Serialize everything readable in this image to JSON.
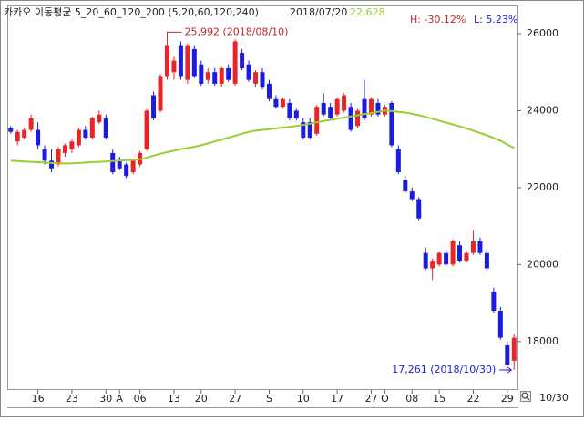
{
  "chart_data": {
    "type": "candlestick",
    "title": "카카오 이동평균 5_20_60_120_200 (5,20,60,120,240)",
    "readout_date": "2018/07/20",
    "readout_value": "22,628",
    "high_change": "H: -30.12%",
    "low_change": "L: 5.23%",
    "last_date": "10/30",
    "categories": [
      null,
      null,
      null,
      null,
      "16",
      null,
      null,
      null,
      null,
      "23",
      null,
      null,
      null,
      null,
      "30",
      null,
      "A",
      null,
      null,
      "06",
      null,
      null,
      null,
      null,
      "13",
      null,
      null,
      null,
      "20",
      null,
      null,
      null,
      null,
      "27",
      null,
      null,
      null,
      null,
      "S",
      null,
      null,
      null,
      null,
      "10",
      null,
      null,
      null,
      null,
      "17",
      null,
      null,
      null,
      null,
      "27",
      null,
      "O",
      null,
      null,
      null,
      "08",
      null,
      null,
      null,
      "15",
      null,
      null,
      null,
      null,
      "22",
      null,
      null,
      null,
      null,
      "29",
      null
    ],
    "open": [
      23550,
      23200,
      23300,
      23500,
      23500,
      23000,
      22700,
      22600,
      22900,
      23000,
      23100,
      23500,
      23300,
      23700,
      23800,
      22900,
      22700,
      22600,
      22400,
      22600,
      23000,
      24400,
      24000,
      24900,
      25000,
      25700,
      24800,
      25600,
      25200,
      24800,
      25000,
      24700,
      25100,
      24700,
      25500,
      25200,
      24700,
      25000,
      24700,
      24300,
      24100,
      24200,
      24000,
      23700,
      23700,
      23400,
      24200,
      24100,
      23900,
      24000,
      24100,
      23600,
      24300,
      23900,
      24200,
      23900,
      24200,
      23000,
      22200,
      21900,
      21700,
      20300,
      19900,
      20000,
      20300,
      20000,
      20500,
      20100,
      20300,
      20600,
      20300,
      19300,
      18800,
      17900,
      17500
    ],
    "high": [
      23600,
      23500,
      23550,
      23900,
      23700,
      23100,
      23000,
      23050,
      23150,
      23250,
      23550,
      23600,
      23850,
      24000,
      23900,
      23000,
      22800,
      22650,
      22750,
      22950,
      24050,
      24500,
      24950,
      25992,
      25400,
      25800,
      25750,
      25700,
      25300,
      25100,
      25100,
      25150,
      25200,
      25850,
      25600,
      25300,
      25050,
      25100,
      24800,
      24400,
      24350,
      24300,
      24050,
      23800,
      23800,
      24150,
      24450,
      24200,
      24350,
      24450,
      24200,
      24050,
      24800,
      24350,
      24300,
      24150,
      24250,
      23100,
      22300,
      22000,
      21750,
      20450,
      20150,
      20350,
      20400,
      20650,
      20600,
      20350,
      20900,
      20700,
      20400,
      19400,
      18900,
      18000,
      18200
    ],
    "low": [
      23400,
      23100,
      23250,
      23450,
      23000,
      22600,
      22400,
      22550,
      22800,
      22900,
      23050,
      23250,
      23250,
      23650,
      23250,
      22350,
      22450,
      22250,
      22350,
      22550,
      22950,
      23750,
      23950,
      24800,
      24800,
      24800,
      24700,
      24850,
      24650,
      24700,
      24650,
      24600,
      24750,
      24650,
      25050,
      24750,
      24600,
      24550,
      24250,
      24050,
      24050,
      23750,
      23750,
      23250,
      23250,
      23350,
      23850,
      23750,
      23850,
      23950,
      23450,
      23550,
      23750,
      23850,
      23850,
      23850,
      23050,
      22350,
      21850,
      21650,
      21150,
      19850,
      19600,
      19950,
      19950,
      19950,
      20050,
      20050,
      20250,
      20250,
      19850,
      18750,
      18050,
      17350,
      17261
    ],
    "close": [
      23450,
      23450,
      23500,
      23800,
      23100,
      22700,
      22500,
      23000,
      23100,
      23200,
      23500,
      23300,
      23800,
      23900,
      23300,
      22400,
      22500,
      22300,
      22700,
      22900,
      24000,
      23800,
      24900,
      25700,
      25300,
      24900,
      25700,
      24900,
      24700,
      25000,
      24700,
      25100,
      24800,
      25800,
      25100,
      24800,
      25000,
      24600,
      24300,
      24100,
      24300,
      23800,
      23800,
      23300,
      23300,
      24100,
      23900,
      23800,
      24300,
      24400,
      23500,
      24000,
      23800,
      24300,
      23900,
      24100,
      23100,
      22400,
      21900,
      21700,
      21200,
      19900,
      20100,
      20300,
      20000,
      20600,
      20100,
      20300,
      20600,
      20300,
      19900,
      18800,
      18100,
      17400,
      18100
    ],
    "up_color": "#e8262a",
    "down_color": "#1c1ce0",
    "series": [
      {
        "color": "#9acd32",
        "values": [
          22700,
          22690,
          22680,
          22670,
          22660,
          22650,
          22640,
          22630,
          22628,
          22630,
          22640,
          22650,
          22660,
          22670,
          22680,
          22690,
          22700,
          22710,
          22720,
          22740,
          22780,
          22830,
          22880,
          22920,
          22960,
          23000,
          23030,
          23060,
          23100,
          23150,
          23200,
          23250,
          23300,
          23350,
          23400,
          23450,
          23480,
          23500,
          23520,
          23540,
          23560,
          23580,
          23600,
          23630,
          23660,
          23700,
          23730,
          23760,
          23790,
          23820,
          23850,
          23880,
          23910,
          23940,
          23970,
          24000,
          23990,
          23970,
          23950,
          23920,
          23880,
          23840,
          23790,
          23740,
          23690,
          23640,
          23590,
          23540,
          23480,
          23420,
          23360,
          23290,
          23220,
          23120,
          23030
        ]
      }
    ],
    "annotations": [
      {
        "text": "25,992 (2018/08/10)",
        "color": "#c0282a"
      },
      {
        "text": "17,261 (2018/10/30)",
        "color": "#1c1ce0"
      }
    ],
    "ylim": [
      16740,
      26710
    ],
    "yticks": [
      {
        "value": 18000,
        "label": "18000"
      },
      {
        "value": 20000,
        "label": "20000"
      },
      {
        "value": 22000,
        "label": "22000"
      },
      {
        "value": 24000,
        "label": "24000"
      },
      {
        "value": 26000,
        "label": "26000"
      }
    ]
  }
}
